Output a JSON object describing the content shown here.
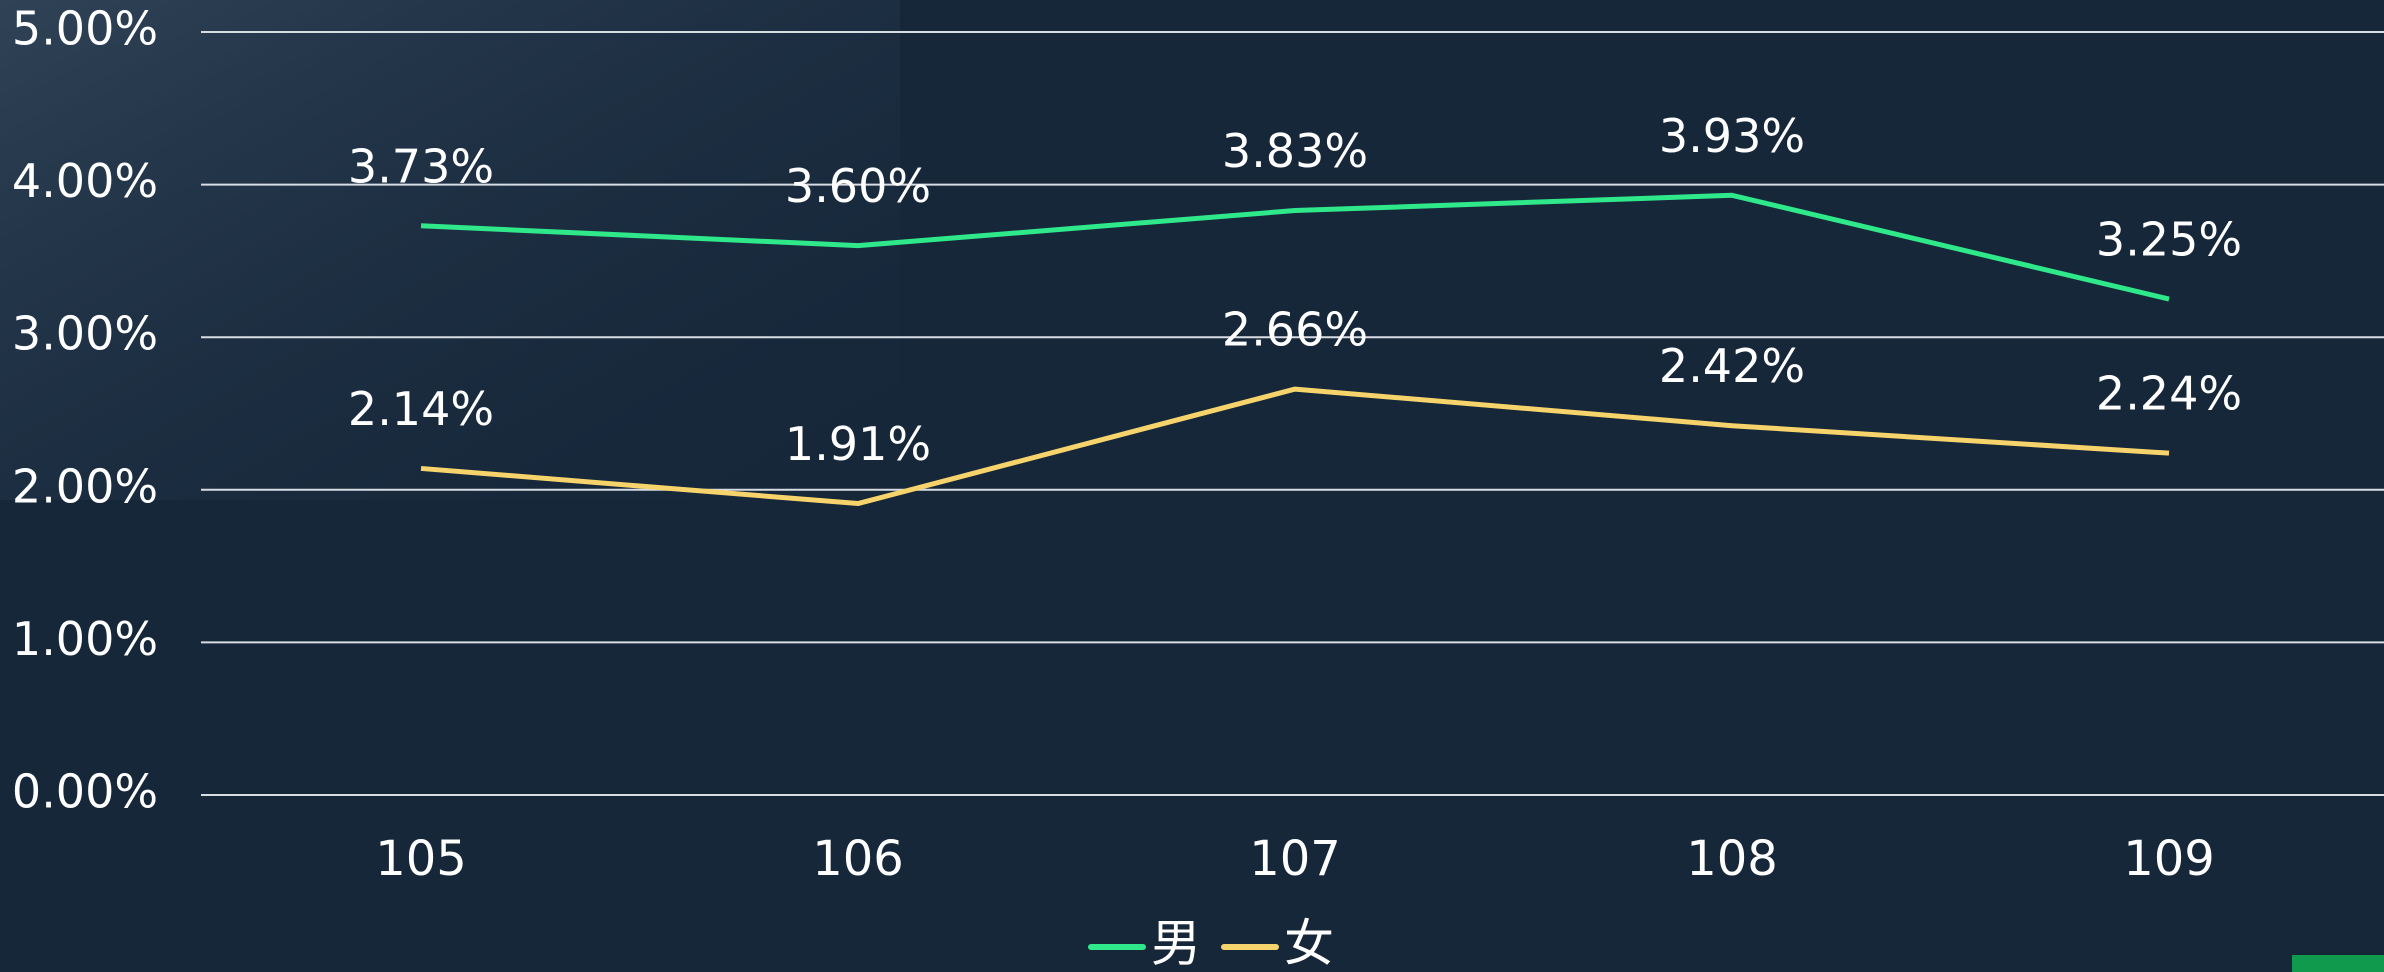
{
  "chart_data": {
    "type": "line",
    "categories": [
      "105",
      "106",
      "107",
      "108",
      "109"
    ],
    "series": [
      {
        "name": "男",
        "color": "#2ee88a",
        "values": [
          3.73,
          3.6,
          3.83,
          3.93,
          3.25
        ],
        "value_labels": [
          "3.73%",
          "3.60%",
          "3.83%",
          "3.93%",
          "3.25%"
        ]
      },
      {
        "name": "女",
        "color": "#f7d36b",
        "values": [
          2.14,
          1.91,
          2.66,
          2.42,
          2.24
        ],
        "value_labels": [
          "2.14%",
          "1.91%",
          "2.66%",
          "2.42%",
          "2.24%"
        ]
      }
    ],
    "ylim": [
      0,
      5
    ],
    "yticks": [
      {
        "value": 0,
        "label": "0.00%"
      },
      {
        "value": 1,
        "label": "1.00%"
      },
      {
        "value": 2,
        "label": "2.00%"
      },
      {
        "value": 3,
        "label": "3.00%"
      },
      {
        "value": 4,
        "label": "4.00%"
      },
      {
        "value": 5,
        "label": "5.00%"
      }
    ],
    "grid": true,
    "legend": "bottom"
  }
}
